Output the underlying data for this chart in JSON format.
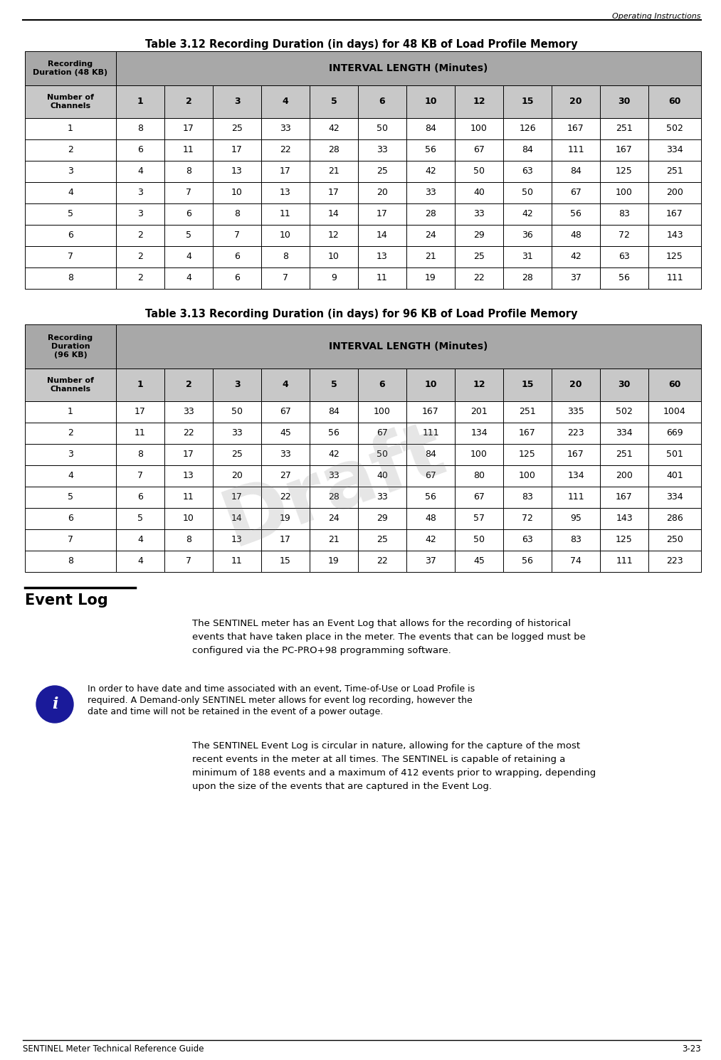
{
  "page_title_right": "Operating Instructions",
  "page_footer_left": "SENTINEL Meter Technical Reference Guide",
  "page_footer_right": "3-23",
  "table1_title": "Table 3.12 Recording Duration (in days) for 48 KB of Load Profile Memory",
  "table2_title": "Table 3.13 Recording Duration (in days) for 96 KB of Load Profile Memory",
  "table1_header1": "Recording\nDuration (48 KB)",
  "table2_header1": "Recording\nDuration\n(96 KB)",
  "interval_header": "INTERVAL LENGTH (Minutes)",
  "channels_label": "Number of\nChannels",
  "interval_cols": [
    "1",
    "2",
    "3",
    "4",
    "5",
    "6",
    "10",
    "12",
    "15",
    "20",
    "30",
    "60"
  ],
  "table1_data": [
    [
      "1",
      "8",
      "17",
      "25",
      "33",
      "42",
      "50",
      "84",
      "100",
      "126",
      "167",
      "251",
      "502"
    ],
    [
      "2",
      "6",
      "11",
      "17",
      "22",
      "28",
      "33",
      "56",
      "67",
      "84",
      "111",
      "167",
      "334"
    ],
    [
      "3",
      "4",
      "8",
      "13",
      "17",
      "21",
      "25",
      "42",
      "50",
      "63",
      "84",
      "125",
      "251"
    ],
    [
      "4",
      "3",
      "7",
      "10",
      "13",
      "17",
      "20",
      "33",
      "40",
      "50",
      "67",
      "100",
      "200"
    ],
    [
      "5",
      "3",
      "6",
      "8",
      "11",
      "14",
      "17",
      "28",
      "33",
      "42",
      "56",
      "83",
      "167"
    ],
    [
      "6",
      "2",
      "5",
      "7",
      "10",
      "12",
      "14",
      "24",
      "29",
      "36",
      "48",
      "72",
      "143"
    ],
    [
      "7",
      "2",
      "4",
      "6",
      "8",
      "10",
      "13",
      "21",
      "25",
      "31",
      "42",
      "63",
      "125"
    ],
    [
      "8",
      "2",
      "4",
      "6",
      "7",
      "9",
      "11",
      "19",
      "22",
      "28",
      "37",
      "56",
      "111"
    ]
  ],
  "table2_data": [
    [
      "1",
      "17",
      "33",
      "50",
      "67",
      "84",
      "100",
      "167",
      "201",
      "251",
      "335",
      "502",
      "1004"
    ],
    [
      "2",
      "11",
      "22",
      "33",
      "45",
      "56",
      "67",
      "111",
      "134",
      "167",
      "223",
      "334",
      "669"
    ],
    [
      "3",
      "8",
      "17",
      "25",
      "33",
      "42",
      "50",
      "84",
      "100",
      "125",
      "167",
      "251",
      "501"
    ],
    [
      "4",
      "7",
      "13",
      "20",
      "27",
      "33",
      "40",
      "67",
      "80",
      "100",
      "134",
      "200",
      "401"
    ],
    [
      "5",
      "6",
      "11",
      "17",
      "22",
      "28",
      "33",
      "56",
      "67",
      "83",
      "111",
      "167",
      "334"
    ],
    [
      "6",
      "5",
      "10",
      "14",
      "19",
      "24",
      "29",
      "48",
      "57",
      "72",
      "95",
      "143",
      "286"
    ],
    [
      "7",
      "4",
      "8",
      "13",
      "17",
      "21",
      "25",
      "42",
      "50",
      "63",
      "83",
      "125",
      "250"
    ],
    [
      "8",
      "4",
      "7",
      "11",
      "15",
      "19",
      "22",
      "37",
      "45",
      "56",
      "74",
      "111",
      "223"
    ]
  ],
  "event_log_heading": "Event Log",
  "event_log_text1": "The SENTINEL meter has an Event Log that allows for the recording of historical\nevents that have taken place in the meter. The events that can be logged must be\nconfigured via the PC-PRO+98 programming software.",
  "event_log_note_line1": "In order to have date and time associated with an event, Time-of-Use or Load Profile is",
  "event_log_note_line2": "required. A Demand-only SENTINEL meter allows for event log recording, however the",
  "event_log_note_line3": "date and time will not be retained in the event of a power outage.",
  "event_log_text2": "The SENTINEL Event Log is circular in nature, allowing for the capture of the most\nrecent events in the meter at all times. The SENTINEL is capable of retaining a\nminimum of 188 events and a maximum of 412 events prior to wrapping, depending\nupon the size of the events that are captured in the Event Log.",
  "draft_watermark": "Draft",
  "dark_gray": "#A8A8A8",
  "light_gray": "#C8C8C8",
  "white": "#FFFFFF",
  "black": "#000000",
  "info_blue": "#1A1A9A"
}
